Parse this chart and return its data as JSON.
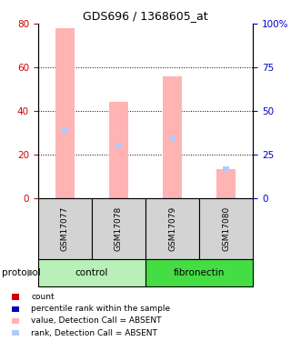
{
  "title": "GDS696 / 1368605_at",
  "samples": [
    "GSM17077",
    "GSM17078",
    "GSM17079",
    "GSM17080"
  ],
  "groups": [
    "control",
    "control",
    "fibronectin",
    "fibronectin"
  ],
  "bar_values": [
    78,
    44,
    56,
    13
  ],
  "rank_values": [
    31,
    24,
    27,
    13
  ],
  "ylim_left": [
    0,
    80
  ],
  "ylim_right": [
    0,
    100
  ],
  "yticks_left": [
    0,
    20,
    40,
    60,
    80
  ],
  "yticks_right": [
    0,
    25,
    50,
    75,
    100
  ],
  "yticklabels_right": [
    "0",
    "25",
    "50",
    "75",
    "100%"
  ],
  "bar_color_absent": "#ffb3b3",
  "rank_color_absent": "#b3c8ff",
  "legend_items": [
    {
      "color": "#cc0000",
      "label": "count"
    },
    {
      "color": "#0000cc",
      "label": "percentile rank within the sample"
    },
    {
      "color": "#ffb3b3",
      "label": "value, Detection Call = ABSENT"
    },
    {
      "color": "#b3c8ff",
      "label": "rank, Detection Call = ABSENT"
    }
  ],
  "protocol_label": "protocol",
  "background_color": "#ffffff",
  "left_yaxis_color": "#cc0000",
  "right_yaxis_color": "#0000cc",
  "label_area_color": "#d3d3d3",
  "control_color": "#b8f0b8",
  "fibronectin_color": "#44dd44"
}
